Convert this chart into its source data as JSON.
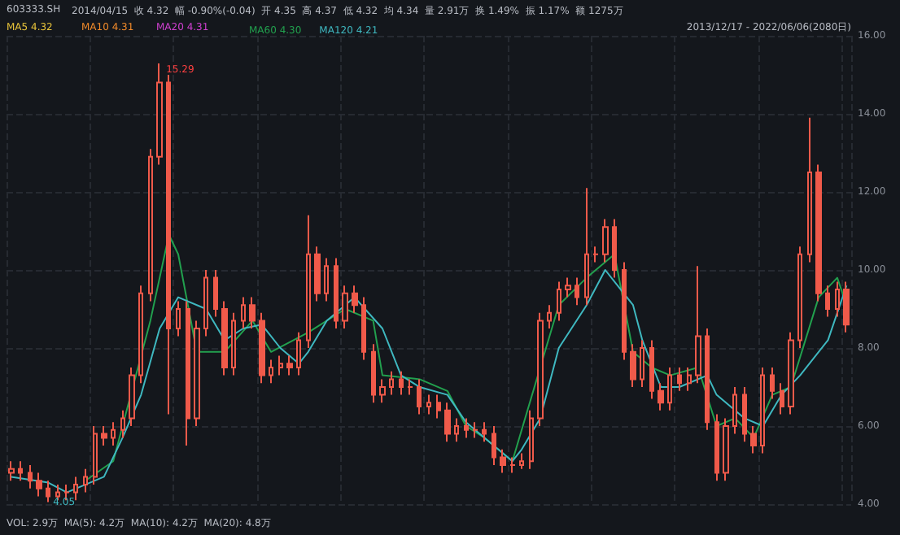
{
  "chart_data": {
    "type": "candlestick",
    "title": "603333.SH",
    "categories": [
      null,
      null,
      null,
      null,
      null,
      null,
      null,
      null,
      null,
      null,
      null,
      null,
      null,
      null,
      null,
      null,
      null,
      null,
      null,
      null,
      null,
      null,
      null,
      null,
      null,
      null,
      null,
      null,
      null,
      null,
      null,
      null,
      null,
      null,
      null,
      null,
      null,
      null,
      null,
      null,
      null,
      null,
      null,
      null,
      null,
      null,
      null,
      null,
      null,
      null,
      null,
      null,
      null,
      null,
      null,
      null,
      null,
      null,
      null,
      null,
      null,
      null,
      null,
      null,
      null,
      null,
      null,
      null,
      null,
      null,
      null,
      null,
      null,
      null,
      null,
      null,
      null,
      null,
      null,
      null,
      null,
      null,
      null,
      null,
      null,
      null,
      null,
      null,
      null,
      null,
      null
    ],
    "series": [
      {
        "type": "candlestick",
        "color": "#f05a4a",
        "ohlc": [
          [
            4.8,
            5.1,
            4.6,
            4.9
          ],
          [
            4.9,
            5.1,
            4.6,
            4.8
          ],
          [
            4.8,
            5.0,
            4.4,
            4.6
          ],
          [
            4.6,
            4.8,
            4.2,
            4.4
          ],
          [
            4.4,
            4.6,
            4.05,
            4.2
          ],
          [
            4.2,
            4.5,
            4.1,
            4.3
          ],
          [
            4.3,
            4.5,
            4.1,
            4.3
          ],
          [
            4.3,
            4.7,
            4.1,
            4.5
          ],
          [
            4.5,
            4.9,
            4.3,
            4.7
          ],
          [
            4.7,
            6.0,
            4.5,
            5.8
          ],
          [
            5.8,
            6.0,
            5.5,
            5.7
          ],
          [
            5.7,
            6.1,
            5.5,
            5.9
          ],
          [
            5.9,
            6.4,
            5.7,
            6.2
          ],
          [
            6.2,
            7.5,
            6.0,
            7.3
          ],
          [
            7.3,
            9.6,
            7.1,
            9.4
          ],
          [
            9.4,
            13.1,
            9.2,
            12.9
          ],
          [
            12.9,
            15.29,
            12.7,
            14.8
          ],
          [
            14.8,
            15.0,
            6.3,
            8.5
          ],
          [
            8.5,
            9.2,
            8.3,
            9.0
          ],
          [
            9.0,
            9.2,
            5.5,
            6.2
          ],
          [
            6.2,
            8.7,
            6.0,
            8.5
          ],
          [
            8.5,
            10.0,
            8.3,
            9.8
          ],
          [
            9.8,
            10.0,
            8.8,
            9.0
          ],
          [
            9.0,
            9.2,
            7.3,
            7.5
          ],
          [
            7.5,
            8.9,
            7.3,
            8.7
          ],
          [
            8.7,
            9.3,
            8.5,
            9.1
          ],
          [
            9.1,
            9.3,
            8.5,
            8.7
          ],
          [
            8.7,
            8.9,
            7.1,
            7.3
          ],
          [
            7.3,
            7.7,
            7.1,
            7.5
          ],
          [
            7.5,
            7.8,
            7.3,
            7.6
          ],
          [
            7.6,
            7.8,
            7.3,
            7.5
          ],
          [
            7.5,
            8.4,
            7.3,
            8.2
          ],
          [
            8.2,
            11.4,
            8.0,
            10.4
          ],
          [
            10.4,
            10.6,
            9.2,
            9.4
          ],
          [
            9.4,
            10.3,
            9.2,
            10.1
          ],
          [
            10.1,
            10.3,
            8.5,
            8.7
          ],
          [
            8.7,
            9.6,
            8.5,
            9.4
          ],
          [
            9.4,
            9.6,
            8.9,
            9.1
          ],
          [
            9.1,
            9.3,
            7.7,
            7.9
          ],
          [
            7.9,
            8.1,
            6.6,
            6.8
          ],
          [
            6.8,
            7.2,
            6.6,
            7.0
          ],
          [
            7.0,
            7.4,
            6.8,
            7.2
          ],
          [
            7.2,
            7.4,
            6.8,
            7.0
          ],
          [
            7.0,
            7.2,
            6.8,
            7.0
          ],
          [
            7.0,
            7.2,
            6.3,
            6.5
          ],
          [
            6.5,
            6.8,
            6.3,
            6.6
          ],
          [
            6.6,
            6.8,
            6.2,
            6.4
          ],
          [
            6.4,
            6.6,
            5.6,
            5.8
          ],
          [
            5.8,
            6.2,
            5.6,
            6.0
          ],
          [
            6.0,
            6.2,
            5.7,
            5.9
          ],
          [
            5.9,
            6.1,
            5.7,
            5.9
          ],
          [
            5.9,
            6.1,
            5.6,
            5.8
          ],
          [
            5.8,
            6.0,
            5.0,
            5.2
          ],
          [
            5.2,
            5.4,
            4.8,
            5.0
          ],
          [
            5.0,
            5.2,
            4.8,
            5.0
          ],
          [
            5.0,
            5.3,
            4.9,
            5.1
          ],
          [
            5.1,
            6.4,
            4.9,
            6.2
          ],
          [
            6.2,
            8.9,
            6.0,
            8.7
          ],
          [
            8.7,
            9.1,
            8.5,
            8.9
          ],
          [
            8.9,
            9.7,
            8.7,
            9.5
          ],
          [
            9.5,
            9.8,
            9.3,
            9.6
          ],
          [
            9.6,
            9.8,
            9.1,
            9.3
          ],
          [
            9.3,
            12.1,
            9.1,
            10.4
          ],
          [
            10.4,
            10.6,
            10.2,
            10.4
          ],
          [
            10.4,
            11.3,
            10.2,
            11.1
          ],
          [
            11.1,
            11.3,
            9.8,
            10.0
          ],
          [
            10.0,
            10.2,
            7.7,
            7.9
          ],
          [
            7.9,
            8.1,
            7.0,
            7.2
          ],
          [
            7.2,
            8.2,
            7.0,
            8.0
          ],
          [
            8.0,
            8.2,
            6.7,
            6.9
          ],
          [
            6.9,
            7.1,
            6.4,
            6.6
          ],
          [
            6.6,
            7.5,
            6.4,
            7.3
          ],
          [
            7.3,
            7.5,
            6.9,
            7.1
          ],
          [
            7.1,
            7.5,
            6.9,
            7.3
          ],
          [
            7.3,
            10.1,
            7.1,
            8.3
          ],
          [
            8.3,
            8.5,
            5.9,
            6.1
          ],
          [
            6.1,
            6.3,
            4.6,
            4.8
          ],
          [
            4.8,
            6.2,
            4.6,
            6.0
          ],
          [
            6.0,
            7.0,
            5.8,
            6.8
          ],
          [
            6.8,
            7.0,
            5.6,
            5.8
          ],
          [
            5.8,
            6.0,
            5.3,
            5.5
          ],
          [
            5.5,
            7.5,
            5.3,
            7.3
          ],
          [
            7.3,
            7.5,
            6.7,
            6.9
          ],
          [
            6.9,
            7.1,
            6.3,
            6.5
          ],
          [
            6.5,
            8.4,
            6.3,
            8.2
          ],
          [
            8.2,
            10.6,
            8.0,
            10.4
          ],
          [
            10.4,
            13.9,
            10.2,
            12.5
          ],
          [
            12.5,
            12.7,
            9.2,
            9.4
          ],
          [
            9.4,
            9.6,
            8.8,
            9.0
          ],
          [
            9.0,
            9.7,
            8.8,
            9.5
          ],
          [
            9.5,
            9.7,
            8.4,
            8.6
          ]
        ]
      },
      {
        "type": "line",
        "name": "MA60 4.30",
        "color": "#22a04e",
        "values": [
          null,
          null,
          null,
          null,
          null,
          null,
          null,
          null,
          4.6,
          null,
          null,
          5.1,
          null,
          null,
          null,
          8.7,
          null,
          10.9,
          10.4,
          null,
          7.9,
          null,
          null,
          7.9,
          null,
          null,
          8.7,
          null,
          7.9,
          null,
          null,
          null,
          8.4,
          null,
          null,
          null,
          9.0,
          null,
          null,
          8.7,
          7.3,
          null,
          null,
          null,
          7.2,
          null,
          null,
          6.9,
          null,
          6.0,
          null,
          5.7,
          null,
          null,
          5.1,
          null,
          null,
          null,
          null,
          9.1,
          null,
          null,
          9.8,
          null,
          null,
          10.4,
          null,
          7.9,
          null,
          7.5,
          null,
          7.3,
          null,
          null,
          7.5,
          null,
          6.0,
          null,
          6.2,
          null,
          5.7,
          null,
          6.8,
          null,
          7.0,
          null,
          null,
          9.3,
          null,
          9.8,
          9.1
        ]
      },
      {
        "type": "line",
        "name": "MA120 4.21",
        "color": "#3fb8c0",
        "values": [
          4.7,
          null,
          null,
          null,
          4.55,
          null,
          4.3,
          null,
          null,
          null,
          4.7,
          null,
          5.7,
          null,
          6.8,
          null,
          8.5,
          null,
          9.3,
          null,
          null,
          9.0,
          null,
          8.2,
          null,
          8.5,
          null,
          8.6,
          null,
          8.0,
          null,
          7.6,
          7.9,
          null,
          8.7,
          null,
          null,
          9.3,
          null,
          null,
          8.5,
          null,
          7.3,
          null,
          7.0,
          null,
          null,
          6.8,
          null,
          6.1,
          null,
          5.7,
          null,
          null,
          5.1,
          5.4,
          null,
          6.2,
          null,
          8.0,
          null,
          null,
          9.1,
          null,
          10.0,
          null,
          null,
          9.1,
          8.2,
          null,
          7.0,
          null,
          7.0,
          null,
          null,
          7.3,
          6.8,
          null,
          null,
          6.2,
          null,
          6.0,
          null,
          6.8,
          null,
          7.3,
          null,
          null,
          8.2,
          null,
          9.6
        ]
      }
    ],
    "ylim": [
      4,
      16
    ],
    "yticks": [
      {
        "value": 4,
        "label": "4.00"
      },
      {
        "value": 6,
        "label": "6.00"
      },
      {
        "value": 8,
        "label": "8.00"
      },
      {
        "value": 10,
        "label": "10.00"
      },
      {
        "value": 12,
        "label": "12.00"
      },
      {
        "value": 14,
        "label": "14.00"
      },
      {
        "value": 16,
        "label": "16.00"
      }
    ],
    "tick_labels": "y",
    "grid": true,
    "legend": "top left",
    "marker": "none",
    "annotations": [
      "2014/04/15  收 4.32  幅 -0.90%(-0.04)  开 4.35  高 4.37  低 4.32  均 4.34  量 2.91万  换 1.49%  振 1.17%  额 1275万",
      "MA5 4.32",
      "MA10 4.31",
      "MA20 4.31",
      "2013/12/17 - 2022/06/06(2080日)",
      "VOL: 2.9万  MA(5): 4.2万  MA(10): 4.2万  MA(20): 4.8万",
      "15.29",
      {
        "text": "4.05",
        "y": 4.05
      }
    ]
  }
}
